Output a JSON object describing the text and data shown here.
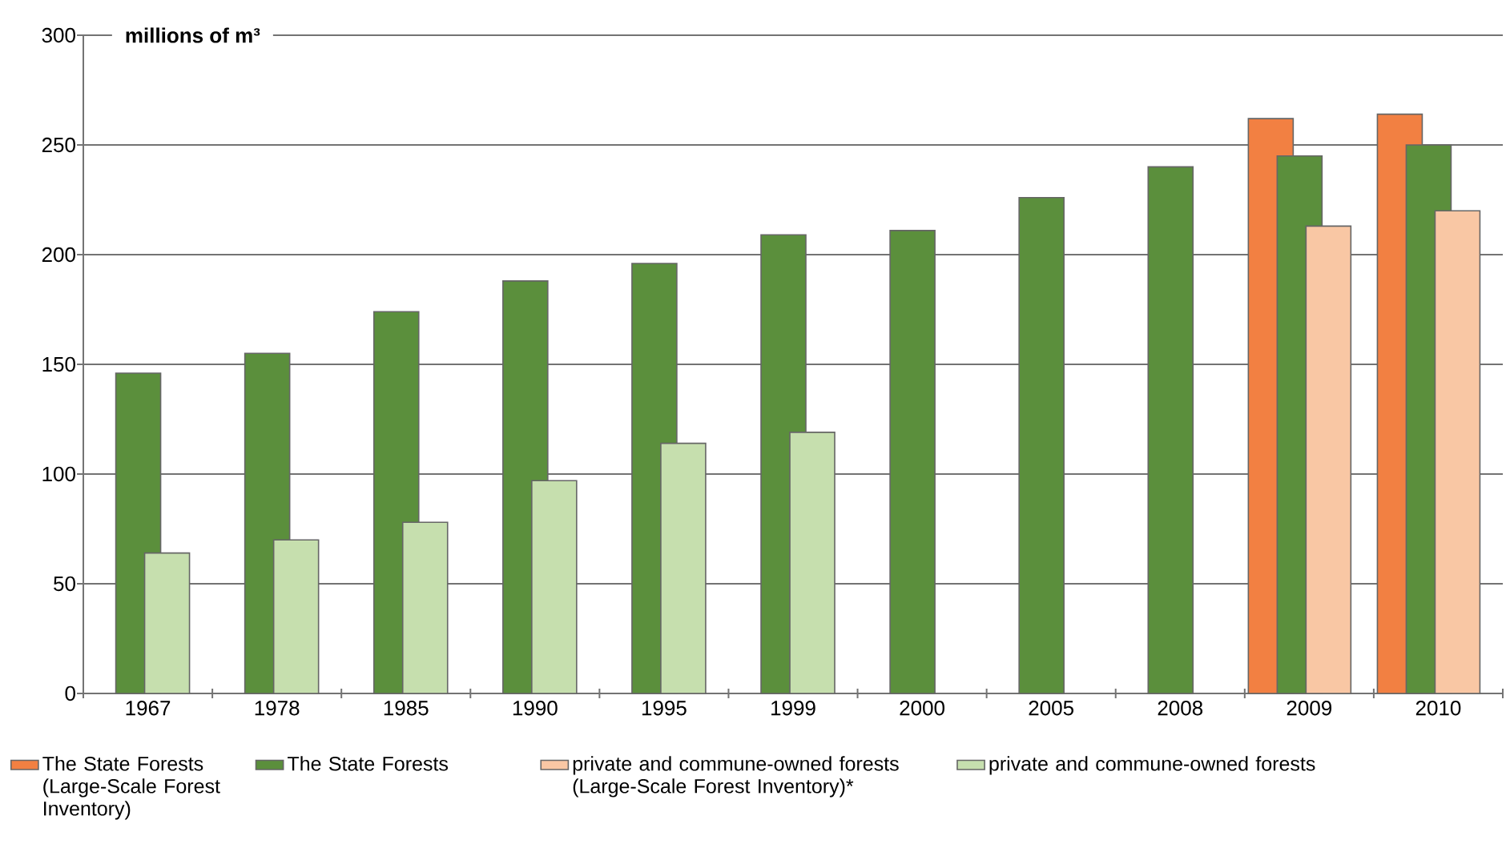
{
  "chart_data": {
    "type": "bar",
    "ylabel": "millions of m³",
    "categories": [
      "1967",
      "1978",
      "1985",
      "1990",
      "1995",
      "1999",
      "2000",
      "2005",
      "2008",
      "2009",
      "2010"
    ],
    "series": [
      {
        "name": "The State Forests (Large-Scale Forest Inventory)",
        "color": "#f28042",
        "values": [
          null,
          null,
          null,
          null,
          null,
          null,
          null,
          null,
          null,
          262,
          264
        ]
      },
      {
        "name": "The State Forests",
        "color": "#5b8f3c",
        "values": [
          146,
          155,
          174,
          188,
          196,
          209,
          211,
          226,
          240,
          245,
          250
        ]
      },
      {
        "name": "private and commune-owned forests (Large-Scale Forest Inventory)*",
        "color": "#f9c7a4",
        "values": [
          null,
          null,
          null,
          null,
          null,
          null,
          null,
          null,
          null,
          213,
          220
        ]
      },
      {
        "name": "private and commune-owned forests",
        "color": "#c6dfae",
        "values": [
          64,
          70,
          78,
          97,
          114,
          119,
          null,
          null,
          null,
          null,
          null
        ]
      }
    ],
    "ylim": [
      0,
      300
    ],
    "yticks": [
      0,
      50,
      100,
      150,
      200,
      250,
      300
    ],
    "grid": "y",
    "legend": "bottom"
  }
}
